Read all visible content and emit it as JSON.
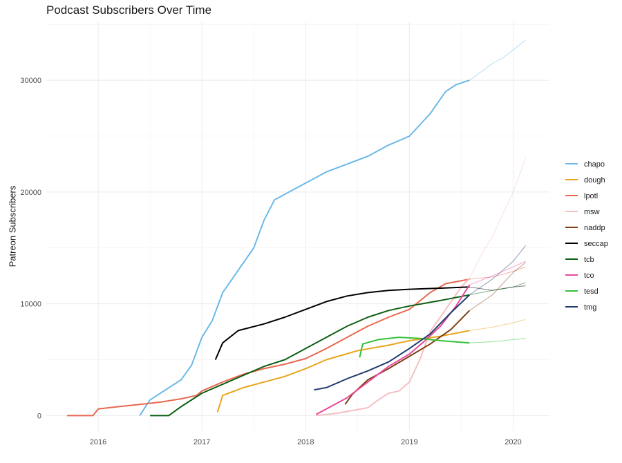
{
  "chart_data": {
    "type": "line",
    "title": "Podcast Subscribers Over Time",
    "xlabel": "",
    "ylabel": "Patreon Subscribers",
    "xlim": [
      2015.5,
      2020.35
    ],
    "ylim": [
      -1400,
      35200
    ],
    "x_ticks": [
      {
        "value": 2016,
        "label": "2016"
      },
      {
        "value": 2017,
        "label": "2017"
      },
      {
        "value": 2018,
        "label": "2018"
      },
      {
        "value": 2019,
        "label": "2019"
      },
      {
        "value": 2020,
        "label": "2020"
      }
    ],
    "y_ticks": [
      {
        "value": 0,
        "label": "0"
      },
      {
        "value": 10000,
        "label": "10000"
      },
      {
        "value": 20000,
        "label": "20000"
      },
      {
        "value": 30000,
        "label": "30000"
      }
    ],
    "grid": true,
    "legend_position": "right",
    "forecast_start": 2019.58,
    "series": [
      {
        "name": "chapo",
        "color": "#6BB8E8",
        "points": [
          [
            2016.4,
            0
          ],
          [
            2016.5,
            1400
          ],
          [
            2016.6,
            2000
          ],
          [
            2016.8,
            3200
          ],
          [
            2016.9,
            4500
          ],
          [
            2017.0,
            7000
          ],
          [
            2017.1,
            8500
          ],
          [
            2017.2,
            11000
          ],
          [
            2017.35,
            13000
          ],
          [
            2017.5,
            15000
          ],
          [
            2017.6,
            17500
          ],
          [
            2017.7,
            19300
          ],
          [
            2017.8,
            19800
          ],
          [
            2018.0,
            20800
          ],
          [
            2018.2,
            21800
          ],
          [
            2018.4,
            22500
          ],
          [
            2018.6,
            23200
          ],
          [
            2018.8,
            24200
          ],
          [
            2019.0,
            25000
          ],
          [
            2019.2,
            27000
          ],
          [
            2019.35,
            29000
          ],
          [
            2019.45,
            29600
          ],
          [
            2019.58,
            30000
          ]
        ],
        "forecast": [
          [
            2019.58,
            30000
          ],
          [
            2019.7,
            30800
          ],
          [
            2019.8,
            31500
          ],
          [
            2019.9,
            32000
          ],
          [
            2020.0,
            32700
          ],
          [
            2020.12,
            33600
          ]
        ]
      },
      {
        "name": "dough",
        "color": "#E8A51C",
        "points": [
          [
            2017.15,
            300
          ],
          [
            2017.2,
            1800
          ],
          [
            2017.4,
            2500
          ],
          [
            2017.6,
            3000
          ],
          [
            2017.8,
            3500
          ],
          [
            2018.0,
            4200
          ],
          [
            2018.2,
            5000
          ],
          [
            2018.5,
            5800
          ],
          [
            2018.8,
            6300
          ],
          [
            2019.0,
            6700
          ],
          [
            2019.3,
            7100
          ],
          [
            2019.58,
            7600
          ]
        ],
        "forecast": [
          [
            2019.58,
            7600
          ],
          [
            2019.8,
            7900
          ],
          [
            2020.0,
            8300
          ],
          [
            2020.12,
            8600
          ]
        ]
      },
      {
        "name": "lpotl",
        "color": "#E8674F",
        "points": [
          [
            2015.7,
            0
          ],
          [
            2015.95,
            0
          ],
          [
            2016.0,
            600
          ],
          [
            2016.2,
            800
          ],
          [
            2016.4,
            1000
          ],
          [
            2016.6,
            1200
          ],
          [
            2016.8,
            1500
          ],
          [
            2016.95,
            1800
          ],
          [
            2017.0,
            2200
          ],
          [
            2017.2,
            3000
          ],
          [
            2017.4,
            3700
          ],
          [
            2017.6,
            4200
          ],
          [
            2017.8,
            4600
          ],
          [
            2018.0,
            5100
          ],
          [
            2018.2,
            6000
          ],
          [
            2018.4,
            7000
          ],
          [
            2018.6,
            8000
          ],
          [
            2018.8,
            8800
          ],
          [
            2019.0,
            9500
          ],
          [
            2019.2,
            11000
          ],
          [
            2019.35,
            11800
          ],
          [
            2019.58,
            12200
          ]
        ],
        "forecast": [
          [
            2019.58,
            12200
          ],
          [
            2019.8,
            12400
          ],
          [
            2020.0,
            12900
          ],
          [
            2020.12,
            13300
          ]
        ]
      },
      {
        "name": "msw",
        "color": "#F5BFC2",
        "points": [
          [
            2018.1,
            0
          ],
          [
            2018.3,
            200
          ],
          [
            2018.6,
            700
          ],
          [
            2018.7,
            1400
          ],
          [
            2018.8,
            2000
          ],
          [
            2018.9,
            2200
          ],
          [
            2019.0,
            3000
          ],
          [
            2019.1,
            5000
          ],
          [
            2019.2,
            7500
          ],
          [
            2019.35,
            9500
          ],
          [
            2019.5,
            11500
          ],
          [
            2019.58,
            12300
          ]
        ],
        "forecast": [
          [
            2019.58,
            12300
          ],
          [
            2019.7,
            14500
          ],
          [
            2019.8,
            16000
          ],
          [
            2019.9,
            18000
          ],
          [
            2020.0,
            20000
          ],
          [
            2020.12,
            23000
          ]
        ]
      },
      {
        "name": "naddp",
        "color": "#7E3F12",
        "points": [
          [
            2018.38,
            1000
          ],
          [
            2018.45,
            1900
          ],
          [
            2018.6,
            3200
          ],
          [
            2018.8,
            4200
          ],
          [
            2019.0,
            5300
          ],
          [
            2019.2,
            6400
          ],
          [
            2019.4,
            7700
          ],
          [
            2019.58,
            9400
          ]
        ],
        "forecast": [
          [
            2019.58,
            9400
          ],
          [
            2019.8,
            10800
          ],
          [
            2020.0,
            12800
          ],
          [
            2020.12,
            13700
          ]
        ]
      },
      {
        "name": "seccap",
        "color": "#000000",
        "points": [
          [
            2017.13,
            5000
          ],
          [
            2017.2,
            6500
          ],
          [
            2017.35,
            7600
          ],
          [
            2017.6,
            8200
          ],
          [
            2017.8,
            8800
          ],
          [
            2018.0,
            9500
          ],
          [
            2018.2,
            10200
          ],
          [
            2018.4,
            10700
          ],
          [
            2018.6,
            11000
          ],
          [
            2018.8,
            11200
          ],
          [
            2019.0,
            11300
          ],
          [
            2019.3,
            11400
          ],
          [
            2019.58,
            11500
          ]
        ],
        "forecast": [
          [
            2019.58,
            11500
          ],
          [
            2019.8,
            11200
          ],
          [
            2020.0,
            11500
          ],
          [
            2020.12,
            11600
          ]
        ]
      },
      {
        "name": "tcb",
        "color": "#0D5E12",
        "points": [
          [
            2016.5,
            0
          ],
          [
            2016.68,
            0
          ],
          [
            2016.8,
            800
          ],
          [
            2017.0,
            2000
          ],
          [
            2017.2,
            2800
          ],
          [
            2017.4,
            3600
          ],
          [
            2017.6,
            4400
          ],
          [
            2017.8,
            5000
          ],
          [
            2018.0,
            6000
          ],
          [
            2018.2,
            7000
          ],
          [
            2018.4,
            8000
          ],
          [
            2018.6,
            8800
          ],
          [
            2018.8,
            9400
          ],
          [
            2019.0,
            9800
          ],
          [
            2019.3,
            10300
          ],
          [
            2019.58,
            10800
          ]
        ],
        "forecast": [
          [
            2019.58,
            10800
          ],
          [
            2019.8,
            11200
          ],
          [
            2020.0,
            11500
          ],
          [
            2020.12,
            11900
          ]
        ]
      },
      {
        "name": "tco",
        "color": "#E8489A",
        "points": [
          [
            2018.1,
            100
          ],
          [
            2018.2,
            600
          ],
          [
            2018.4,
            1600
          ],
          [
            2018.6,
            3000
          ],
          [
            2018.8,
            4400
          ],
          [
            2019.0,
            5500
          ],
          [
            2019.15,
            6700
          ],
          [
            2019.3,
            8000
          ],
          [
            2019.45,
            9800
          ],
          [
            2019.58,
            11700
          ]
        ],
        "forecast": [
          [
            2019.58,
            11700
          ],
          [
            2019.8,
            12500
          ],
          [
            2020.0,
            13300
          ],
          [
            2020.12,
            13800
          ]
        ]
      },
      {
        "name": "tesd",
        "color": "#33C03A",
        "points": [
          [
            2018.52,
            5200
          ],
          [
            2018.55,
            6400
          ],
          [
            2018.7,
            6800
          ],
          [
            2018.9,
            7000
          ],
          [
            2019.1,
            6900
          ],
          [
            2019.3,
            6700
          ],
          [
            2019.58,
            6500
          ]
        ],
        "forecast": [
          [
            2019.58,
            6500
          ],
          [
            2019.8,
            6600
          ],
          [
            2020.0,
            6800
          ],
          [
            2020.12,
            6900
          ]
        ]
      },
      {
        "name": "tmg",
        "color": "#223B6E",
        "points": [
          [
            2018.08,
            2300
          ],
          [
            2018.2,
            2500
          ],
          [
            2018.4,
            3300
          ],
          [
            2018.6,
            4000
          ],
          [
            2018.8,
            4800
          ],
          [
            2019.0,
            6000
          ],
          [
            2019.2,
            7300
          ],
          [
            2019.4,
            9200
          ],
          [
            2019.58,
            10800
          ]
        ],
        "forecast": [
          [
            2019.58,
            10800
          ],
          [
            2019.8,
            12200
          ],
          [
            2020.0,
            13800
          ],
          [
            2020.12,
            15200
          ]
        ]
      }
    ]
  }
}
